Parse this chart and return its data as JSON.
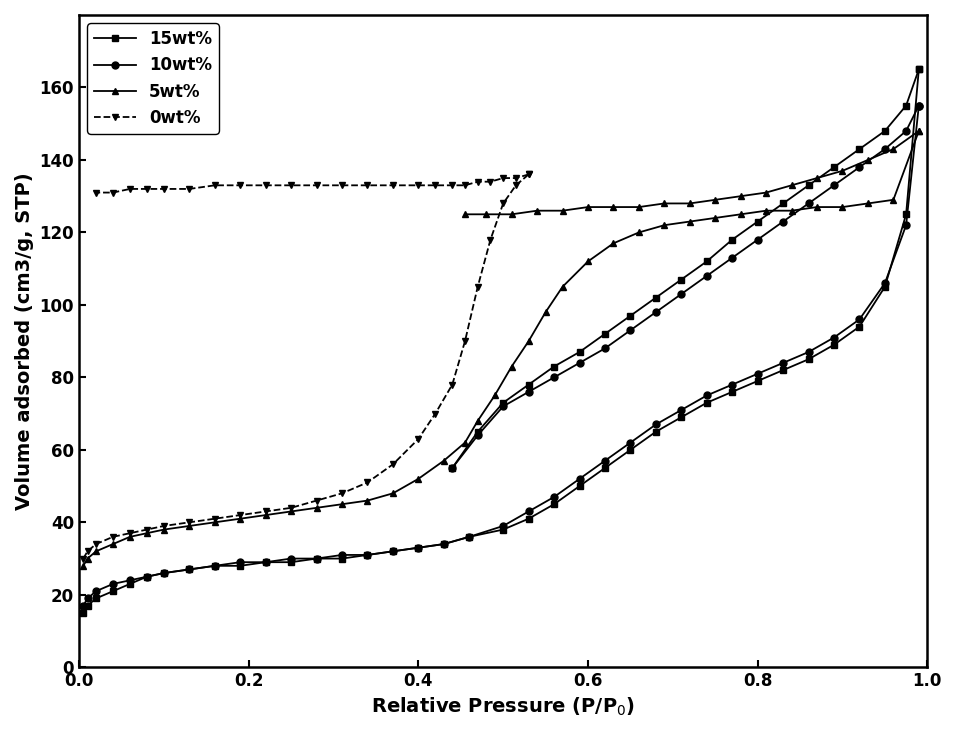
{
  "title": "",
  "xlabel": "Relative Pressure (P/P$_0$)",
  "ylabel": "Volume adsorbed (cm3/g, STP)",
  "xlim": [
    0.0,
    1.0
  ],
  "ylim": [
    0,
    180
  ],
  "yticks": [
    0,
    20,
    40,
    60,
    80,
    100,
    120,
    140,
    160
  ],
  "xticks": [
    0.0,
    0.2,
    0.4,
    0.6,
    0.8,
    1.0
  ],
  "series": [
    {
      "label": "15wt%",
      "marker": "s",
      "linestyle": "-",
      "adsorption_x": [
        0.005,
        0.01,
        0.02,
        0.04,
        0.06,
        0.08,
        0.1,
        0.13,
        0.16,
        0.19,
        0.22,
        0.25,
        0.28,
        0.31,
        0.34,
        0.37,
        0.4,
        0.43,
        0.46,
        0.5,
        0.53,
        0.56,
        0.59,
        0.62,
        0.65,
        0.68,
        0.71,
        0.74,
        0.77,
        0.8,
        0.83,
        0.86,
        0.89,
        0.92,
        0.95,
        0.975,
        0.99
      ],
      "adsorption_y": [
        15,
        17,
        19,
        21,
        23,
        25,
        26,
        27,
        28,
        28,
        29,
        29,
        30,
        30,
        31,
        32,
        33,
        34,
        36,
        38,
        41,
        45,
        50,
        55,
        60,
        65,
        69,
        73,
        76,
        79,
        82,
        85,
        89,
        94,
        105,
        125,
        165
      ],
      "desorption_x": [
        0.99,
        0.975,
        0.95,
        0.92,
        0.89,
        0.86,
        0.83,
        0.8,
        0.77,
        0.74,
        0.71,
        0.68,
        0.65,
        0.62,
        0.59,
        0.56,
        0.53,
        0.5,
        0.47,
        0.44
      ],
      "desorption_y": [
        165,
        155,
        148,
        143,
        138,
        133,
        128,
        123,
        118,
        112,
        107,
        102,
        97,
        92,
        87,
        83,
        78,
        73,
        65,
        55
      ]
    },
    {
      "label": "10wt%",
      "marker": "o",
      "linestyle": "-",
      "adsorption_x": [
        0.005,
        0.01,
        0.02,
        0.04,
        0.06,
        0.08,
        0.1,
        0.13,
        0.16,
        0.19,
        0.22,
        0.25,
        0.28,
        0.31,
        0.34,
        0.37,
        0.4,
        0.43,
        0.46,
        0.5,
        0.53,
        0.56,
        0.59,
        0.62,
        0.65,
        0.68,
        0.71,
        0.74,
        0.77,
        0.8,
        0.83,
        0.86,
        0.89,
        0.92,
        0.95,
        0.975,
        0.99
      ],
      "adsorption_y": [
        17,
        19,
        21,
        23,
        24,
        25,
        26,
        27,
        28,
        29,
        29,
        30,
        30,
        31,
        31,
        32,
        33,
        34,
        36,
        39,
        43,
        47,
        52,
        57,
        62,
        67,
        71,
        75,
        78,
        81,
        84,
        87,
        91,
        96,
        106,
        122,
        155
      ],
      "desorption_x": [
        0.99,
        0.975,
        0.95,
        0.92,
        0.89,
        0.86,
        0.83,
        0.8,
        0.77,
        0.74,
        0.71,
        0.68,
        0.65,
        0.62,
        0.59,
        0.56,
        0.53,
        0.5,
        0.47,
        0.44
      ],
      "desorption_y": [
        155,
        148,
        143,
        138,
        133,
        128,
        123,
        118,
        113,
        108,
        103,
        98,
        93,
        88,
        84,
        80,
        76,
        72,
        64,
        55
      ]
    },
    {
      "label": "5wt%",
      "marker": "^",
      "linestyle": "-",
      "adsorption_x": [
        0.005,
        0.01,
        0.02,
        0.04,
        0.06,
        0.08,
        0.1,
        0.13,
        0.16,
        0.19,
        0.22,
        0.25,
        0.28,
        0.31,
        0.34,
        0.37,
        0.4,
        0.43,
        0.455,
        0.47,
        0.49,
        0.51,
        0.53,
        0.55,
        0.57,
        0.6,
        0.63,
        0.66,
        0.69,
        0.72,
        0.75,
        0.78,
        0.81,
        0.84,
        0.87,
        0.9,
        0.93,
        0.96,
        0.99
      ],
      "adsorption_y": [
        28,
        30,
        32,
        34,
        36,
        37,
        38,
        39,
        40,
        41,
        42,
        43,
        44,
        45,
        46,
        48,
        52,
        57,
        62,
        68,
        75,
        83,
        90,
        98,
        105,
        112,
        117,
        120,
        122,
        123,
        124,
        125,
        126,
        126,
        127,
        127,
        128,
        129,
        148
      ],
      "desorption_x": [
        0.99,
        0.96,
        0.93,
        0.9,
        0.87,
        0.84,
        0.81,
        0.78,
        0.75,
        0.72,
        0.69,
        0.66,
        0.63,
        0.6,
        0.57,
        0.54,
        0.51,
        0.48,
        0.455
      ],
      "desorption_y": [
        148,
        143,
        140,
        137,
        135,
        133,
        131,
        130,
        129,
        128,
        128,
        127,
        127,
        127,
        126,
        126,
        125,
        125,
        125
      ]
    },
    {
      "label": "0wt%",
      "marker": "v",
      "linestyle": "--",
      "adsorption_x": [
        0.005,
        0.01,
        0.02,
        0.04,
        0.06,
        0.08,
        0.1,
        0.13,
        0.16,
        0.19,
        0.22,
        0.25,
        0.28,
        0.31,
        0.34,
        0.37,
        0.4,
        0.42,
        0.44,
        0.455,
        0.47,
        0.485,
        0.5,
        0.515,
        0.53
      ],
      "adsorption_y": [
        30,
        32,
        34,
        36,
        37,
        38,
        39,
        40,
        41,
        42,
        43,
        44,
        46,
        48,
        51,
        56,
        63,
        70,
        78,
        90,
        105,
        118,
        128,
        133,
        136
      ],
      "desorption_x": [
        0.53,
        0.515,
        0.5,
        0.485,
        0.47,
        0.455,
        0.44,
        0.42,
        0.4,
        0.37,
        0.34,
        0.31,
        0.28,
        0.25,
        0.22,
        0.19,
        0.16,
        0.13,
        0.1,
        0.08,
        0.06,
        0.04,
        0.02
      ],
      "desorption_y": [
        136,
        135,
        135,
        134,
        134,
        133,
        133,
        133,
        133,
        133,
        133,
        133,
        133,
        133,
        133,
        133,
        133,
        132,
        132,
        132,
        132,
        131,
        131
      ]
    }
  ],
  "background_color": "#ffffff",
  "markersize": 5,
  "linewidth": 1.3,
  "fontsize_labels": 14,
  "fontsize_ticks": 12,
  "fontsize_legend": 12
}
